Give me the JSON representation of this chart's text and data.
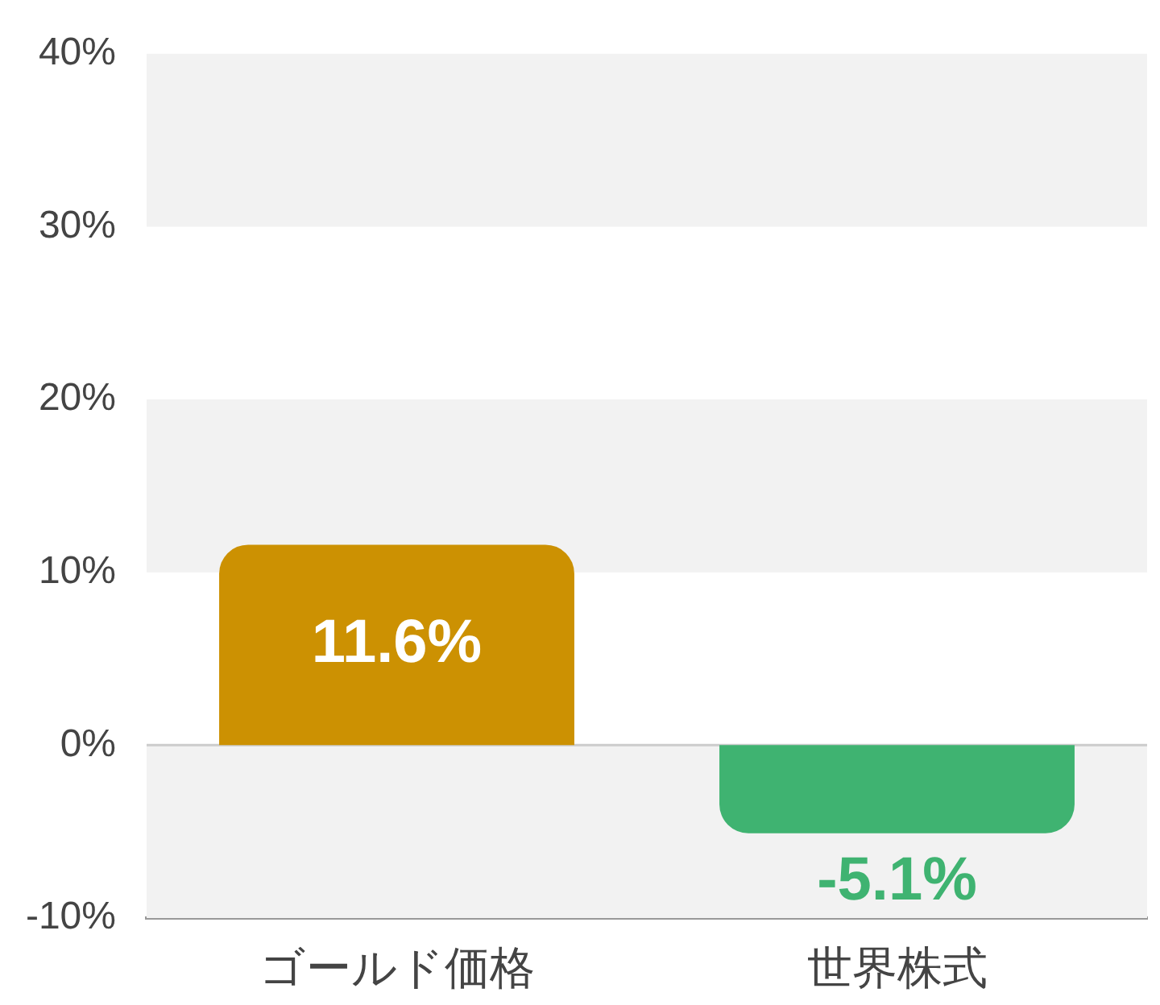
{
  "chart_data": {
    "type": "bar",
    "categories": [
      "ゴールド価格",
      "世界株式"
    ],
    "values": [
      11.6,
      -5.1
    ],
    "colors": [
      "#cc9102",
      "#3fb371"
    ],
    "value_labels": [
      "11.6%",
      "-5.1%"
    ],
    "ylim": [
      -10,
      40
    ],
    "yticks": [
      {
        "value": -10,
        "label": "-10%"
      },
      {
        "value": 0,
        "label": "0%"
      },
      {
        "value": 10,
        "label": "10%"
      },
      {
        "value": 20,
        "label": "20%"
      },
      {
        "value": 30,
        "label": "30%"
      },
      {
        "value": 40,
        "label": "40%"
      }
    ],
    "bands": [
      {
        "axis": "y",
        "from": -10,
        "to": 0,
        "color": "#f2f2f2"
      },
      {
        "axis": "y",
        "from": 10,
        "to": 20,
        "color": "#f2f2f2"
      },
      {
        "axis": "y",
        "from": 30,
        "to": 40,
        "color": "#f2f2f2"
      }
    ],
    "ref_lines": [
      {
        "axis": "y",
        "value": 0,
        "color": "#cccccc"
      }
    ]
  }
}
